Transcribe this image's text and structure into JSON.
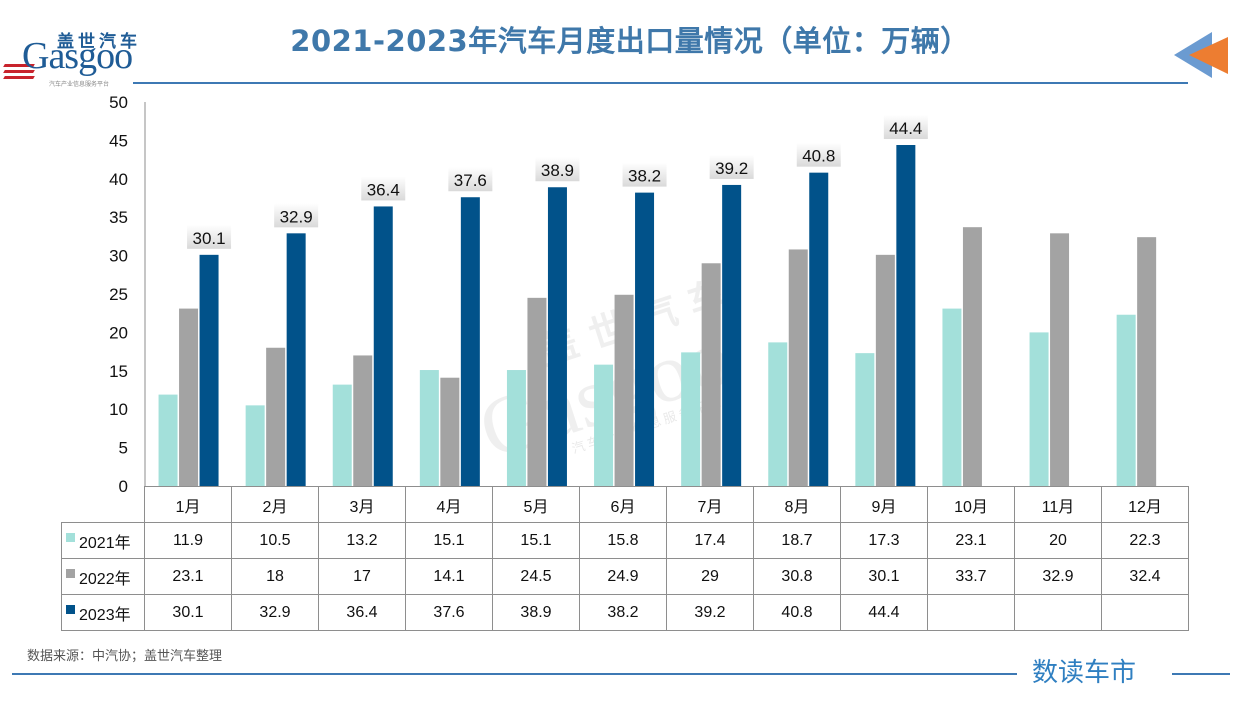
{
  "header": {
    "logo_cn": "盖世汽车",
    "logo_en": "Gasgoo",
    "logo_sub": "汽车产业信息服务平台",
    "title": "2021-2023年汽车月度出口量情况（单位：万辆）"
  },
  "footer": {
    "source": "数据来源：中汽协；盖世汽车整理",
    "brand": "数读车市"
  },
  "watermark": {
    "cn": "盖世汽车",
    "en": "Gasgoo",
    "sub": "汽车产业信息服务平台"
  },
  "colors": {
    "2021": "#a3e0da",
    "2022": "#a3a3a3",
    "2023": "#01528a",
    "title": "#3f78aa",
    "rule": "#3d79b4",
    "arrow_blue": "#6b9bd1",
    "arrow_orange": "#ed7d31"
  },
  "chart_data": {
    "type": "bar",
    "title": "2021-2023年汽车月度出口量情况（单位：万辆）",
    "xlabel": "",
    "ylabel": "万辆",
    "ylim": [
      0,
      50
    ],
    "yticks": [
      0,
      5,
      10,
      15,
      20,
      25,
      30,
      35,
      40,
      45,
      50
    ],
    "grid": false,
    "legend": "data-table",
    "categories": [
      "1月",
      "2月",
      "3月",
      "4月",
      "5月",
      "6月",
      "7月",
      "8月",
      "9月",
      "10月",
      "11月",
      "12月"
    ],
    "series": [
      {
        "name": "2021年",
        "values": [
          11.9,
          10.5,
          13.2,
          15.1,
          15.1,
          15.8,
          17.4,
          18.7,
          17.3,
          23.1,
          20,
          22.3
        ],
        "labels": false
      },
      {
        "name": "2022年",
        "values": [
          23.1,
          18,
          17,
          14.1,
          24.5,
          24.9,
          29,
          30.8,
          30.1,
          33.7,
          32.9,
          32.4
        ],
        "labels": false
      },
      {
        "name": "2023年",
        "values": [
          30.1,
          32.9,
          36.4,
          37.6,
          38.9,
          38.2,
          39.2,
          40.8,
          44.4,
          null,
          null,
          null
        ],
        "labels": true
      }
    ]
  }
}
